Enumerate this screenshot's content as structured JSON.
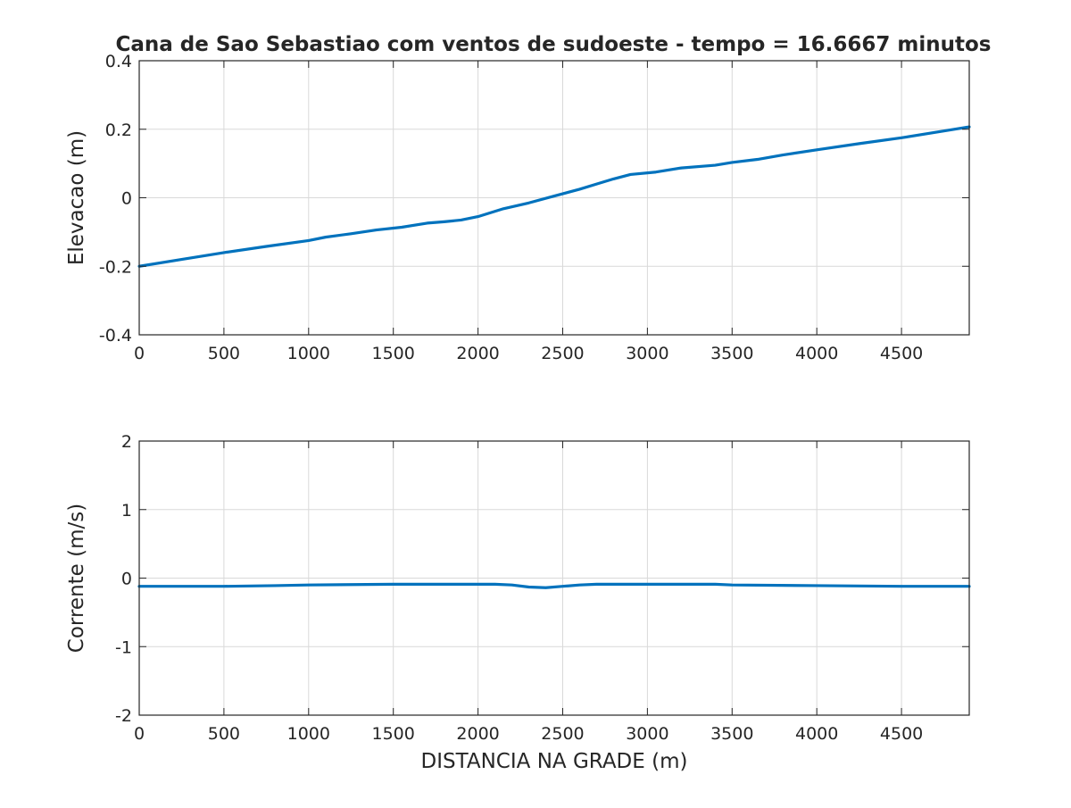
{
  "figure": {
    "title": "Cana de Sao Sebastiao com ventos de sudoeste - tempo = 16.6667 minutos",
    "line_color": "#0072BD",
    "grid_color": "#d9d9d9",
    "axis_color": "#262626"
  },
  "chart_data": [
    {
      "type": "line",
      "id": "elevation",
      "title": "Cana de Sao Sebastiao com ventos de sudoeste - tempo = 16.6667 minutos",
      "xlabel": "",
      "ylabel": "Elevacao (m)",
      "xlim": [
        0,
        4900
      ],
      "ylim": [
        -0.4,
        0.4
      ],
      "grid": true,
      "xticks": [
        0,
        500,
        1000,
        1500,
        2000,
        2500,
        3000,
        3500,
        4000,
        4500
      ],
      "xtick_labels": [
        "0",
        "500",
        "1000",
        "1500",
        "2000",
        "2500",
        "3000",
        "3500",
        "4000",
        "4500"
      ],
      "yticks": [
        -0.4,
        -0.2,
        0,
        0.2,
        0.4
      ],
      "ytick_labels": [
        "-0.4",
        "-0.2",
        "0",
        "0.2",
        "0.4"
      ],
      "series": [
        {
          "x": [
            0,
            250,
            500,
            750,
            1000,
            1100,
            1250,
            1400,
            1550,
            1700,
            1800,
            1900,
            2000,
            2150,
            2300,
            2450,
            2600,
            2700,
            2800,
            2900,
            3050,
            3200,
            3400,
            3500,
            3650,
            3800,
            4000,
            4250,
            4500,
            4750,
            4900
          ],
          "y": [
            -0.2,
            -0.18,
            -0.16,
            -0.142,
            -0.125,
            -0.115,
            -0.105,
            -0.094,
            -0.086,
            -0.074,
            -0.07,
            -0.065,
            -0.055,
            -0.032,
            -0.015,
            0.005,
            0.025,
            0.04,
            0.055,
            0.068,
            0.075,
            0.087,
            0.095,
            0.103,
            0.112,
            0.125,
            0.14,
            0.158,
            0.175,
            0.195,
            0.207
          ]
        }
      ]
    },
    {
      "type": "line",
      "id": "current",
      "title": "",
      "xlabel": "DISTANCIA NA GRADE (m)",
      "ylabel": "Corrente (m/s)",
      "xlim": [
        0,
        4900
      ],
      "ylim": [
        -2,
        2
      ],
      "grid": true,
      "xticks": [
        0,
        500,
        1000,
        1500,
        2000,
        2500,
        3000,
        3500,
        4000,
        4500
      ],
      "xtick_labels": [
        "0",
        "500",
        "1000",
        "1500",
        "2000",
        "2500",
        "3000",
        "3500",
        "4000",
        "4500"
      ],
      "yticks": [
        -2,
        -1,
        0,
        1,
        2
      ],
      "ytick_labels": [
        "-2",
        "-1",
        "0",
        "1",
        "2"
      ],
      "series": [
        {
          "x": [
            0,
            500,
            800,
            1000,
            1500,
            2000,
            2100,
            2200,
            2300,
            2400,
            2500,
            2600,
            2700,
            3000,
            3400,
            3500,
            4000,
            4500,
            4900
          ],
          "y": [
            -0.12,
            -0.12,
            -0.11,
            -0.1,
            -0.09,
            -0.09,
            -0.09,
            -0.1,
            -0.13,
            -0.14,
            -0.12,
            -0.1,
            -0.09,
            -0.09,
            -0.09,
            -0.1,
            -0.11,
            -0.12,
            -0.12
          ]
        }
      ]
    }
  ]
}
